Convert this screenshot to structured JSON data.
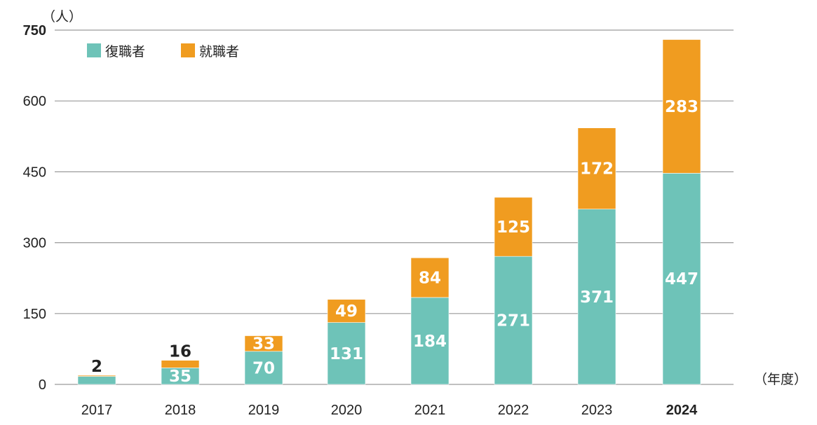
{
  "chart_data": {
    "type": "bar",
    "stacked": true,
    "categories": [
      "2017",
      "2018",
      "2019",
      "2020",
      "2021",
      "2022",
      "2023",
      "2024"
    ],
    "series": [
      {
        "name": "復職者",
        "values": [
          17,
          35,
          70,
          131,
          184,
          271,
          371,
          447
        ],
        "color": "#6ec3b8",
        "labels": [
          "",
          "35",
          "70",
          "131",
          "184",
          "271",
          "371",
          "447"
        ]
      },
      {
        "name": "就職者",
        "values": [
          2,
          16,
          33,
          49,
          84,
          125,
          172,
          283
        ],
        "color": "#f09c20",
        "labels": [
          "2",
          "16",
          "33",
          "49",
          "84",
          "125",
          "172",
          "283"
        ]
      }
    ],
    "y_unit": "（人）",
    "x_unit": "（年度）",
    "ylim": [
      0,
      750
    ],
    "yticks": [
      "0",
      "150",
      "300",
      "450",
      "600",
      "750"
    ],
    "grid": true,
    "legend_position": "top-left"
  }
}
